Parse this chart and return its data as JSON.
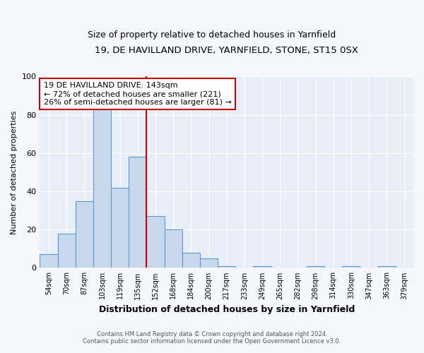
{
  "title1": "19, DE HAVILLAND DRIVE, YARNFIELD, STONE, ST15 0SX",
  "title2": "Size of property relative to detached houses in Yarnfield",
  "xlabel": "Distribution of detached houses by size in Yarnfield",
  "ylabel": "Number of detached properties",
  "bin_labels": [
    "54sqm",
    "70sqm",
    "87sqm",
    "103sqm",
    "119sqm",
    "135sqm",
    "152sqm",
    "168sqm",
    "184sqm",
    "200sqm",
    "217sqm",
    "233sqm",
    "249sqm",
    "265sqm",
    "282sqm",
    "298sqm",
    "314sqm",
    "330sqm",
    "347sqm",
    "363sqm",
    "379sqm"
  ],
  "bar_heights": [
    7,
    18,
    35,
    84,
    42,
    58,
    27,
    20,
    8,
    5,
    1,
    0,
    1,
    0,
    0,
    1,
    0,
    1,
    0,
    1,
    0
  ],
  "bar_color": "#c9d9ed",
  "bar_edge_color": "#5b9bd5",
  "vline_x_index": 6,
  "vline_color": "#cc0000",
  "annotation_line1": "19 DE HAVILLAND DRIVE: 143sqm",
  "annotation_line2": "← 72% of detached houses are smaller (221)",
  "annotation_line3": "26% of semi-detached houses are larger (81) →",
  "annotation_box_color": "#ffffff",
  "annotation_box_edge": "#cc0000",
  "ylim": [
    0,
    100
  ],
  "plot_bg_color": "#e8eef7",
  "fig_bg_color": "#f5f7fc",
  "footnote1": "Contains HM Land Registry data © Crown copyright and database right 2024.",
  "footnote2": "Contains public sector information licensed under the Open Government Licence v3.0."
}
